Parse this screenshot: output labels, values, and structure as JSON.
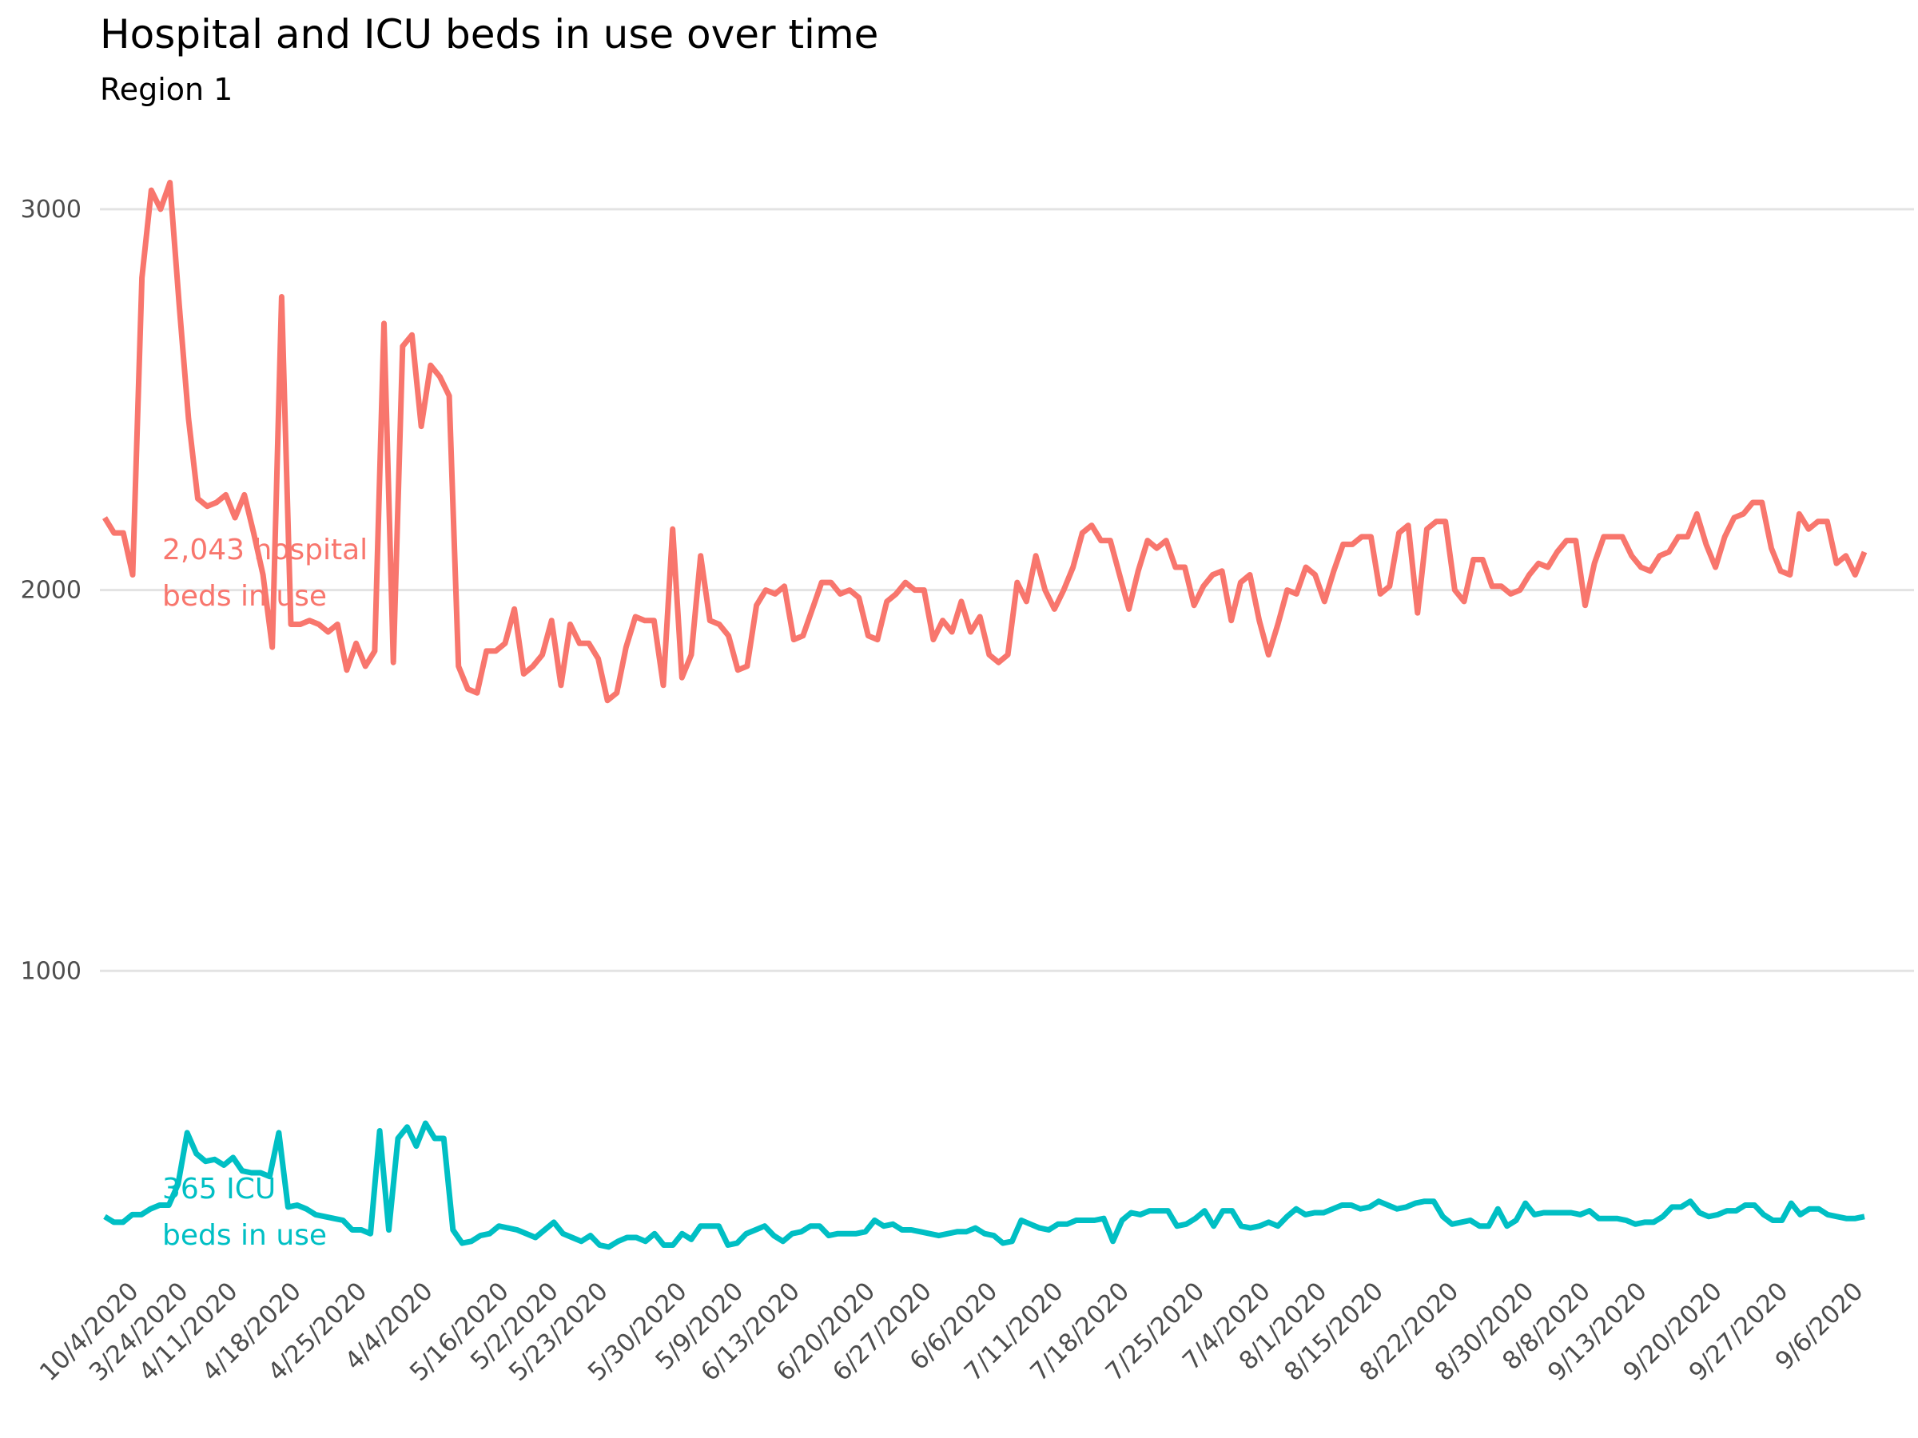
{
  "chart_data": {
    "type": "line",
    "title": "Hospital and ICU beds in use over time",
    "subtitle": "Region 1",
    "xlabel": "",
    "ylabel": "",
    "ylim": [
      0,
      3300
    ],
    "grid": true,
    "y_ticks": [
      1000,
      2000,
      3000
    ],
    "y_tick_labels": [
      "1000",
      "2000",
      "3000"
    ],
    "x_domain": [
      0,
      187
    ],
    "x_ticks": [
      {
        "index": 6,
        "label": "10/4/2020"
      },
      {
        "index": 7,
        "label": "3/24/2020"
      },
      {
        "index": 14,
        "label": "4/11/2020"
      },
      {
        "index": 21,
        "label": "4/18/2020"
      },
      {
        "index": 28,
        "label": "4/25/2020"
      },
      {
        "index": 35,
        "label": "4/4/2020"
      },
      {
        "index": 46,
        "label": "5/16/2020"
      },
      {
        "index": 48,
        "label": "5/2/2020"
      },
      {
        "index": 51,
        "label": "5/23/2020"
      },
      {
        "index": 62,
        "label": "5/30/2020"
      },
      {
        "index": 68,
        "label": "5/9/2020"
      },
      {
        "index": 74,
        "label": "6/13/2020"
      },
      {
        "index": 82,
        "label": "6/20/2020"
      },
      {
        "index": 88,
        "label": "6/27/2020"
      },
      {
        "index": 95,
        "label": "6/6/2020"
      },
      {
        "index": 102,
        "label": "7/11/2020"
      },
      {
        "index": 109,
        "label": "7/18/2020"
      },
      {
        "index": 117,
        "label": "7/25/2020"
      },
      {
        "index": 124,
        "label": "7/4/2020"
      },
      {
        "index": 130,
        "label": "8/1/2020"
      },
      {
        "index": 136,
        "label": "8/15/2020"
      },
      {
        "index": 144,
        "label": "8/22/2020"
      },
      {
        "index": 152,
        "label": "8/30/2020"
      },
      {
        "index": 158,
        "label": "8/8/2020"
      },
      {
        "index": 164,
        "label": "9/13/2020"
      },
      {
        "index": 172,
        "label": "9/20/2020"
      },
      {
        "index": 179,
        "label": "9/27/2020"
      },
      {
        "index": 187,
        "label": "9/6/2020"
      }
    ],
    "series": [
      {
        "name": "Hospital beds in use",
        "color": "#F8766D",
        "annotation": [
          "2,043 hospital",
          "beds in use"
        ],
        "values": [
          2190,
          2150,
          2150,
          2040,
          2820,
          3050,
          3000,
          3070,
          2750,
          2450,
          2240,
          2220,
          2230,
          2250,
          2190,
          2250,
          2150,
          2040,
          1850,
          2770,
          1910,
          1910,
          1920,
          1910,
          1890,
          1910,
          1790,
          1860,
          1800,
          1840,
          2700,
          1810,
          2640,
          2670,
          2430,
          2590,
          2560,
          2510,
          1800,
          1740,
          1730,
          1840,
          1840,
          1860,
          1950,
          1780,
          1800,
          1830,
          1920,
          1750,
          1910,
          1860,
          1860,
          1820,
          1710,
          1730,
          1850,
          1930,
          1920,
          1920,
          1750,
          2160,
          1770,
          1830,
          2090,
          1920,
          1910,
          1880,
          1790,
          1800,
          1960,
          2000,
          1990,
          2010,
          1870,
          1880,
          1950,
          2020,
          2020,
          1990,
          2000,
          1980,
          1880,
          1870,
          1970,
          1990,
          2020,
          2000,
          2000,
          1870,
          1920,
          1890,
          1970,
          1890,
          1930,
          1830,
          1810,
          1830,
          2020,
          1970,
          2090,
          2000,
          1950,
          2000,
          2060,
          2150,
          2170,
          2130,
          2130,
          2040,
          1950,
          2050,
          2130,
          2110,
          2130,
          2060,
          2060,
          1960,
          2010,
          2040,
          2050,
          1920,
          2020,
          2040,
          1920,
          1830,
          1910,
          2000,
          1990,
          2060,
          2040,
          1970,
          2050,
          2120,
          2120,
          2140,
          2140,
          1990,
          2010,
          2150,
          2170,
          1940,
          2160,
          2180,
          2180,
          2000,
          1970,
          2080,
          2080,
          2010,
          2010,
          1990,
          2000,
          2040,
          2070,
          2060,
          2100,
          2130,
          2130,
          1960,
          2070,
          2140,
          2140,
          2140,
          2090,
          2060,
          2050,
          2090,
          2100,
          2140,
          2140,
          2200,
          2120,
          2060,
          2140,
          2190,
          2200,
          2230,
          2230,
          2110,
          2050,
          2040,
          2200,
          2160,
          2180,
          2180,
          2070,
          2090,
          2040,
          2100
        ]
      },
      {
        "name": "ICU beds in use",
        "color": "#00BFC4",
        "annotation": [
          "365 ICU",
          "beds in use"
        ],
        "values": [
          355,
          340,
          340,
          360,
          360,
          375,
          385,
          385,
          440,
          575,
          520,
          500,
          505,
          490,
          510,
          475,
          470,
          470,
          460,
          575,
          380,
          385,
          375,
          360,
          355,
          350,
          345,
          320,
          320,
          310,
          580,
          320,
          560,
          590,
          540,
          600,
          560,
          560,
          320,
          285,
          290,
          305,
          310,
          330,
          325,
          320,
          310,
          300,
          320,
          340,
          310,
          300,
          290,
          305,
          280,
          275,
          290,
          300,
          300,
          290,
          310,
          280,
          280,
          310,
          295,
          330,
          330,
          330,
          280,
          285,
          310,
          320,
          330,
          305,
          290,
          310,
          315,
          330,
          330,
          305,
          310,
          310,
          310,
          315,
          345,
          330,
          335,
          320,
          320,
          315,
          310,
          305,
          310,
          315,
          315,
          325,
          310,
          305,
          285,
          290,
          345,
          335,
          325,
          320,
          335,
          335,
          345,
          345,
          345,
          350,
          290,
          345,
          365,
          360,
          370,
          370,
          370,
          330,
          335,
          350,
          370,
          330,
          370,
          370,
          330,
          325,
          330,
          340,
          330,
          355,
          375,
          360,
          365,
          365,
          375,
          385,
          385,
          375,
          380,
          395,
          385,
          375,
          380,
          390,
          395,
          395,
          355,
          335,
          340,
          345,
          330,
          330,
          375,
          330,
          345,
          390,
          360,
          365,
          365,
          365,
          365,
          360,
          370,
          350,
          350,
          350,
          345,
          335,
          340,
          340,
          355,
          380,
          380,
          395,
          365,
          355,
          360,
          370,
          370,
          385,
          385,
          360,
          345,
          345,
          390,
          360,
          375,
          375,
          360,
          355,
          350,
          350,
          355
        ]
      }
    ]
  }
}
